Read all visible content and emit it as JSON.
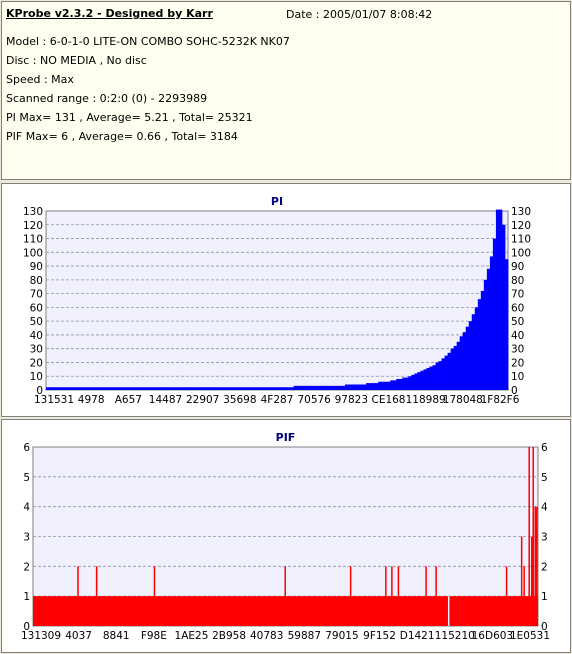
{
  "header": {
    "title": "KProbe v2.3.2 - Designed by Karr",
    "date": "Date : 2005/01/07 8:08:42",
    "lines": [
      "Model : 6-0-1-0 LITE-ON COMBO SOHC-5232K NK07",
      "Disc : NO MEDIA , No disc",
      "Speed : Max",
      "Scanned range : 0:2:0 (0) - 2293989",
      "PI Max= 131 , Average= 5.21 , Total= 25321",
      "PIF Max= 6 , Average= 0.66 , Total= 3184"
    ]
  },
  "chart_data": [
    {
      "type": "bar",
      "title": "PI",
      "ylim": [
        0,
        130
      ],
      "yticks": [
        0,
        10,
        20,
        30,
        40,
        50,
        60,
        70,
        80,
        90,
        100,
        110,
        120,
        130
      ],
      "xticks": [
        "131531",
        "4978",
        "A657",
        "14487",
        "22907",
        "35698",
        "4F287",
        "70576",
        "97823",
        "CE168",
        "118989",
        "178048",
        "1F82F6"
      ],
      "grid": true,
      "color": "#0000ff",
      "series": [
        {
          "values": [
            2,
            2,
            2,
            2,
            2,
            2,
            2,
            2,
            2,
            2,
            2,
            2,
            2,
            2,
            2,
            2,
            2,
            2,
            2,
            2,
            2,
            2,
            2,
            2,
            2,
            2,
            2,
            2,
            2,
            2,
            2,
            2,
            2,
            2,
            2,
            2,
            2,
            2,
            2,
            2,
            2,
            2,
            2,
            2,
            2,
            2,
            2,
            2,
            2,
            2,
            2,
            2,
            2,
            2,
            2,
            2,
            2,
            2,
            2,
            2,
            2,
            2,
            2,
            2,
            2,
            2,
            2,
            2,
            2,
            2,
            2,
            2,
            2,
            2,
            2,
            2,
            2,
            2,
            2,
            2,
            2,
            2,
            3,
            3,
            3,
            3,
            3,
            3,
            3,
            3,
            3,
            3,
            3,
            3,
            3,
            3,
            3,
            3,
            3,
            4,
            4,
            4,
            4,
            4,
            4,
            4,
            5,
            5,
            5,
            5,
            6,
            6,
            6,
            6,
            7,
            7,
            8,
            8,
            9,
            9,
            10,
            11,
            12,
            13,
            14,
            15,
            16,
            17,
            18,
            20,
            21,
            23,
            25,
            27,
            30,
            32,
            35,
            39,
            42,
            46,
            50,
            55,
            60,
            66,
            72,
            80,
            88,
            97,
            110,
            131,
            131,
            120,
            95
          ]
        }
      ]
    },
    {
      "type": "bar",
      "title": "PIF",
      "ylim": [
        0,
        6
      ],
      "yticks": [
        0,
        1,
        2,
        3,
        4,
        5,
        6
      ],
      "xticks": [
        "131309",
        "4037",
        "8841",
        "F98E",
        "1AE25",
        "2B958",
        "40783",
        "59887",
        "79015",
        "9F152",
        "D1421",
        "115210",
        "16D603",
        "1E0531"
      ],
      "grid": true,
      "color": "#ff0000",
      "baseline": 1,
      "spikes": [
        {
          "x": 0.088,
          "value": 2
        },
        {
          "x": 0.125,
          "value": 2
        },
        {
          "x": 0.24,
          "value": 2
        },
        {
          "x": 0.5,
          "value": 2
        },
        {
          "x": 0.63,
          "value": 2
        },
        {
          "x": 0.7,
          "value": 2
        },
        {
          "x": 0.712,
          "value": 2
        },
        {
          "x": 0.725,
          "value": 2
        },
        {
          "x": 0.78,
          "value": 2
        },
        {
          "x": 0.8,
          "value": 2
        },
        {
          "x": 0.94,
          "value": 2
        },
        {
          "x": 0.97,
          "value": 3
        },
        {
          "x": 0.975,
          "value": 2
        },
        {
          "x": 0.985,
          "value": 6
        },
        {
          "x": 0.99,
          "value": 3
        },
        {
          "x": 0.993,
          "value": 6
        },
        {
          "x": 0.997,
          "value": 4
        },
        {
          "x": 1.0,
          "value": 4
        }
      ],
      "gaps": [
        {
          "x": 0.825,
          "value": 0
        }
      ]
    }
  ]
}
